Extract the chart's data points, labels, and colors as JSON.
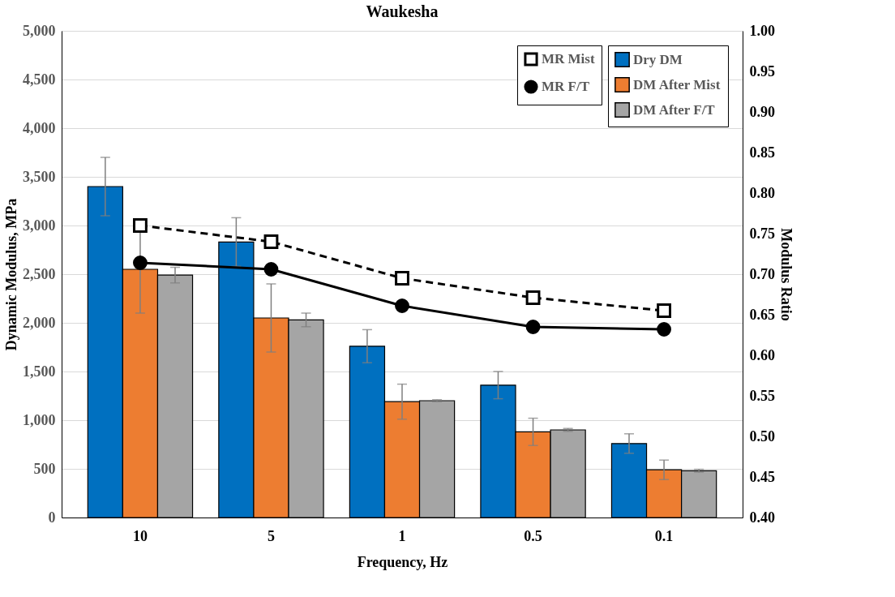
{
  "chart_data": {
    "type": "bar",
    "title": "Waukesha",
    "xlabel": "Frequency,  Hz",
    "ylabel": "Dynamic Modulus, MPa",
    "y2label": "Modulus Ratio",
    "categories": [
      "10",
      "5",
      "1",
      "0.5",
      "0.1"
    ],
    "series": [
      {
        "name": "Dry DM",
        "color": "#0070c0",
        "values": [
          3400,
          2830,
          1760,
          1360,
          760
        ],
        "errors": [
          300,
          250,
          170,
          140,
          100
        ]
      },
      {
        "name": "DM After Mist",
        "color": "#ed7d31",
        "values": [
          2550,
          2050,
          1190,
          880,
          490
        ],
        "errors": [
          450,
          350,
          180,
          140,
          100
        ]
      },
      {
        "name": "DM After F/T",
        "color": "#a5a5a5",
        "values": [
          2490,
          2030,
          1200,
          900,
          480
        ],
        "errors": [
          80,
          70,
          10,
          15,
          15
        ]
      },
      {
        "name": "MR Mist",
        "type": "line",
        "axis": "y2",
        "color": "#000000",
        "marker": "square",
        "line_style": "dashed",
        "values": [
          0.76,
          0.74,
          0.695,
          0.671,
          0.655
        ]
      },
      {
        "name": "MR F/T",
        "type": "line",
        "axis": "y2",
        "color": "#000000",
        "marker": "circle",
        "line_style": "solid",
        "values": [
          0.714,
          0.706,
          0.661,
          0.635,
          0.632
        ]
      }
    ],
    "ylim": [
      0,
      5000
    ],
    "yticks": [
      0,
      500,
      {
        "value": 1000,
        "label": "1,000"
      },
      {
        "value": 1500,
        "label": "1,500"
      },
      {
        "value": 2000,
        "label": "2,000"
      },
      {
        "value": 2500,
        "label": "2,500"
      },
      {
        "value": 3000,
        "label": "3,000"
      },
      {
        "value": 3500,
        "label": "3,500"
      },
      {
        "value": 4000,
        "label": "4,000"
      },
      {
        "value": 4500,
        "label": "4,500"
      },
      {
        "value": 5000,
        "label": "5,000"
      }
    ],
    "y2lim": [
      0.4,
      1.0
    ],
    "y2ticks": [
      {
        "value": 0.4,
        "label": "0.40"
      },
      0.45,
      {
        "value": 0.5,
        "label": "0.50"
      },
      0.55,
      {
        "value": 0.6,
        "label": "0.60"
      },
      0.65,
      {
        "value": 0.7,
        "label": "0.70"
      },
      0.75,
      {
        "value": 0.8,
        "label": "0.80"
      },
      0.85,
      {
        "value": 0.9,
        "label": "0.90"
      },
      0.95,
      {
        "value": 1.0,
        "label": "1.00"
      }
    ],
    "grid": "y",
    "legend": "top right"
  }
}
